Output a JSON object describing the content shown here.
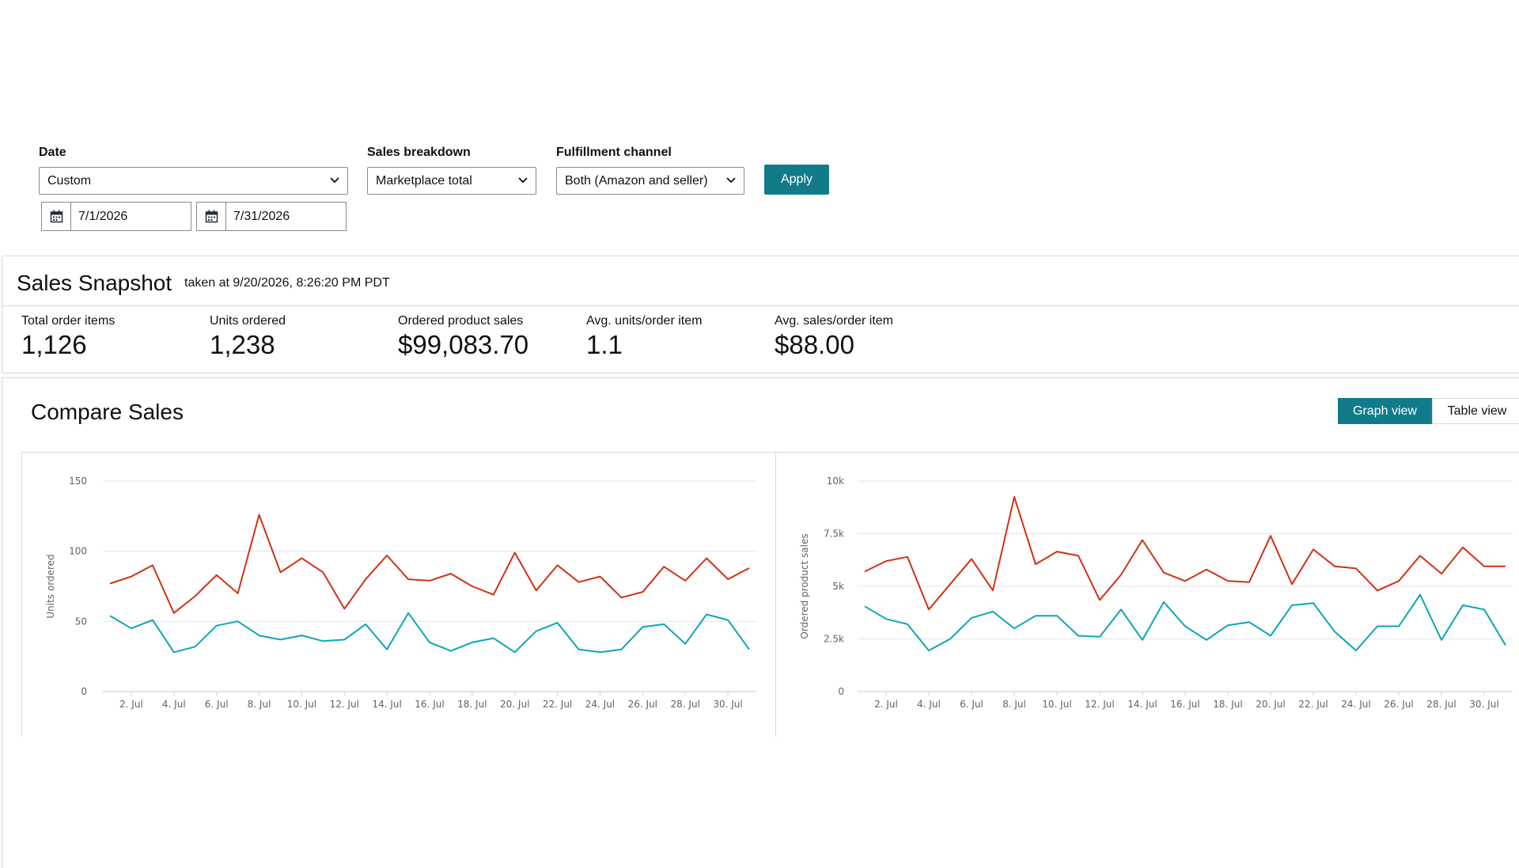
{
  "filters": {
    "date_label": "Date",
    "date_range_value": "Custom",
    "start_date": "7/1/2026",
    "end_date": "7/31/2026",
    "breakdown_label": "Sales breakdown",
    "breakdown_value": "Marketplace total",
    "fulfillment_label": "Fulfillment channel",
    "fulfillment_value": "Both (Amazon and seller)",
    "apply_label": "Apply"
  },
  "snapshot": {
    "title": "Sales Snapshot",
    "taken_at": "taken at 9/20/2026, 8:26:20 PM PDT",
    "metrics": [
      {
        "label": "Total order items",
        "value": "1,126"
      },
      {
        "label": "Units ordered",
        "value": "1,238"
      },
      {
        "label": "Ordered product sales",
        "value": "$99,083.70"
      },
      {
        "label": "Avg. units/order item",
        "value": "1.1"
      },
      {
        "label": "Avg. sales/order item",
        "value": "$88.00"
      }
    ]
  },
  "compare": {
    "title": "Compare Sales",
    "graph_view_label": "Graph view",
    "table_view_label": "Table view"
  },
  "colors": {
    "accent": "#127b8a",
    "series_red": "#d13212",
    "series_teal": "#0ea5b5",
    "grid": "#e3e6e6"
  },
  "chart_data": [
    {
      "type": "line",
      "ylabel": "Units ordered",
      "ylim": [
        0,
        150
      ],
      "yticks": [
        "0",
        "50",
        "100",
        "150"
      ],
      "ytick_values": [
        0,
        50,
        100,
        150
      ],
      "x": [
        1,
        2,
        3,
        4,
        5,
        6,
        7,
        8,
        9,
        10,
        11,
        12,
        13,
        14,
        15,
        16,
        17,
        18,
        19,
        20,
        21,
        22,
        23,
        24,
        25,
        26,
        27,
        28,
        29,
        30,
        31
      ],
      "xtick_labels": [
        "2. Jul",
        "4. Jul",
        "6. Jul",
        "8. Jul",
        "10. Jul",
        "12. Jul",
        "14. Jul",
        "16. Jul",
        "18. Jul",
        "20. Jul",
        "22. Jul",
        "24. Jul",
        "26. Jul",
        "28. Jul",
        "30. Jul"
      ],
      "xtick_days": [
        2,
        4,
        6,
        8,
        10,
        12,
        14,
        16,
        18,
        20,
        22,
        24,
        26,
        28,
        30
      ],
      "grid": true,
      "series": [
        {
          "color": "#d13212",
          "values": [
            77,
            82,
            90,
            56,
            68,
            83,
            70,
            126,
            85,
            95,
            85,
            59,
            80,
            97,
            80,
            79,
            84,
            75,
            69,
            99,
            72,
            90,
            78,
            82,
            67,
            71,
            89,
            79,
            95,
            80,
            88
          ]
        },
        {
          "color": "#0ea5b5",
          "values": [
            54,
            45,
            51,
            28,
            32,
            47,
            50,
            40,
            37,
            40,
            36,
            37,
            48,
            30,
            56,
            35,
            29,
            35,
            38,
            28,
            43,
            49,
            30,
            28,
            30,
            46,
            48,
            34,
            55,
            51,
            30
          ]
        }
      ]
    },
    {
      "type": "line",
      "ylabel": "Ordered product sales",
      "ylim": [
        0,
        10000
      ],
      "yticks": [
        "0",
        "2.5k",
        "5k",
        "7.5k",
        "10k"
      ],
      "ytick_values": [
        0,
        2500,
        5000,
        7500,
        10000
      ],
      "x": [
        1,
        2,
        3,
        4,
        5,
        6,
        7,
        8,
        9,
        10,
        11,
        12,
        13,
        14,
        15,
        16,
        17,
        18,
        19,
        20,
        21,
        22,
        23,
        24,
        25,
        26,
        27,
        28,
        29,
        30,
        31
      ],
      "xtick_labels": [
        "2. Jul",
        "4. Jul",
        "6. Jul",
        "8. Jul",
        "10. Jul",
        "12. Jul",
        "14. Jul",
        "16. Jul",
        "18. Jul",
        "20. Jul",
        "22. Jul",
        "24. Jul",
        "26. Jul",
        "28. Jul",
        "30. Jul"
      ],
      "xtick_days": [
        2,
        4,
        6,
        8,
        10,
        12,
        14,
        16,
        18,
        20,
        22,
        24,
        26,
        28,
        30
      ],
      "grid": true,
      "series": [
        {
          "color": "#d13212",
          "values": [
            5700,
            6200,
            6400,
            3900,
            5100,
            6300,
            4800,
            9250,
            6050,
            6650,
            6450,
            4350,
            5550,
            7200,
            5650,
            5250,
            5800,
            5250,
            5200,
            7400,
            5100,
            6750,
            5950,
            5850,
            4800,
            5250,
            6450,
            5600,
            6850,
            5950,
            5950
          ]
        },
        {
          "color": "#0ea5b5",
          "values": [
            4050,
            3450,
            3200,
            1950,
            2500,
            3500,
            3800,
            3000,
            3600,
            3600,
            2650,
            2600,
            3900,
            2450,
            4250,
            3100,
            2450,
            3150,
            3300,
            2650,
            4100,
            4200,
            2850,
            1950,
            3100,
            3100,
            4600,
            2450,
            4100,
            3900,
            2200
          ]
        }
      ]
    }
  ]
}
